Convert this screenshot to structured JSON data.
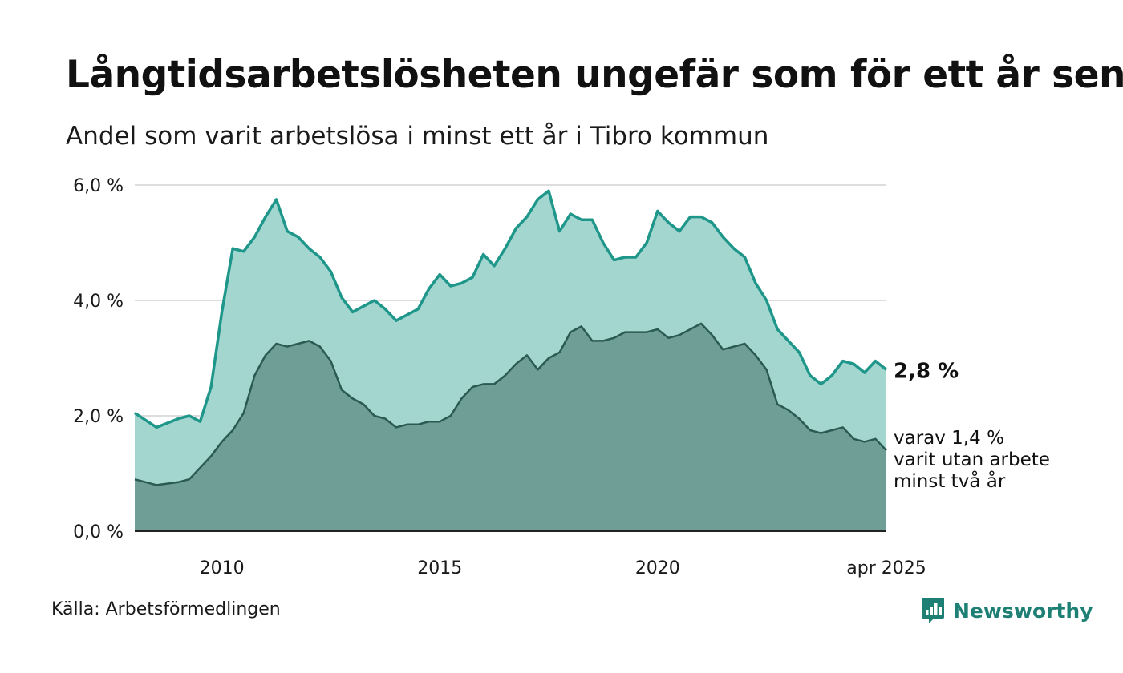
{
  "title": "Långtidsarbetslösheten ungefär som för ett år sen",
  "subtitle": "Andel som varit arbetslösa i minst ett år i Tibro kommun",
  "source": "Källa: Arbetsförmedlingen",
  "brand": "Newsworthy",
  "colors": {
    "total_fill": "#a4d6d0",
    "total_line": "#1f968a",
    "long_fill": "#6f9e96",
    "long_line": "#2a5a52",
    "grid": "#dddddd",
    "brand": "#1e7f74"
  },
  "chart_data": {
    "type": "area",
    "y_ticks": [
      "6,0 %",
      "4,0 %",
      "2,0 %",
      "0,0 %"
    ],
    "x_ticks": [
      "2010",
      "2015",
      "2020",
      "apr 2025"
    ],
    "ylim": [
      0,
      6
    ],
    "xlim": [
      2008.0,
      2025.25
    ],
    "grid": true,
    "x": [
      2008.0,
      2008.5,
      2009.0,
      2009.25,
      2009.5,
      2009.75,
      2010.0,
      2010.25,
      2010.5,
      2010.75,
      2011.0,
      2011.25,
      2011.5,
      2011.75,
      2012.0,
      2012.25,
      2012.5,
      2012.75,
      2013.0,
      2013.25,
      2013.5,
      2013.75,
      2014.0,
      2014.25,
      2014.5,
      2014.75,
      2015.0,
      2015.25,
      2015.5,
      2015.75,
      2016.0,
      2016.25,
      2016.5,
      2016.75,
      2017.0,
      2017.25,
      2017.5,
      2017.75,
      2018.0,
      2018.25,
      2018.5,
      2018.75,
      2019.0,
      2019.25,
      2019.5,
      2019.75,
      2020.0,
      2020.25,
      2020.5,
      2020.75,
      2021.0,
      2021.25,
      2021.5,
      2021.75,
      2022.0,
      2022.25,
      2022.5,
      2022.75,
      2023.0,
      2023.25,
      2023.5,
      2023.75,
      2024.0,
      2024.25,
      2024.5,
      2024.75,
      2025.0,
      2025.25
    ],
    "series": [
      {
        "values": [
          2.05,
          1.8,
          1.95,
          2.0,
          1.9,
          2.5,
          3.8,
          4.9,
          4.85,
          5.1,
          5.45,
          5.75,
          5.2,
          5.1,
          4.9,
          4.75,
          4.5,
          4.05,
          3.8,
          3.9,
          4.0,
          3.85,
          3.65,
          3.75,
          3.85,
          4.2,
          4.45,
          4.25,
          4.3,
          4.4,
          4.8,
          4.6,
          4.9,
          5.25,
          5.45,
          5.75,
          5.9,
          5.2,
          5.5,
          5.4,
          5.4,
          5.0,
          4.7,
          4.75,
          4.75,
          5.0,
          5.55,
          5.35,
          5.2,
          5.45,
          5.45,
          5.35,
          5.1,
          4.9,
          4.75,
          4.3,
          4.0,
          3.5,
          3.3,
          3.1,
          2.7,
          2.55,
          2.7,
          2.95,
          2.9,
          2.75,
          2.95,
          2.8
        ]
      },
      {
        "name": "varav 1,4 % varit utan arbete minst två år",
        "values": [
          0.9,
          0.8,
          0.85,
          0.9,
          1.1,
          1.3,
          1.55,
          1.75,
          2.05,
          2.7,
          3.05,
          3.25,
          3.2,
          3.25,
          3.3,
          3.2,
          2.95,
          2.45,
          2.3,
          2.2,
          2.0,
          1.95,
          1.8,
          1.85,
          1.85,
          1.9,
          1.9,
          2.0,
          2.3,
          2.5,
          2.55,
          2.55,
          2.7,
          2.9,
          3.05,
          2.8,
          3.0,
          3.1,
          3.45,
          3.55,
          3.3,
          3.3,
          3.35,
          3.45,
          3.45,
          3.45,
          3.5,
          3.35,
          3.4,
          3.5,
          3.6,
          3.4,
          3.15,
          3.2,
          3.25,
          3.05,
          2.8,
          2.2,
          2.1,
          1.95,
          1.75,
          1.7,
          1.75,
          1.8,
          1.6,
          1.55,
          1.6,
          1.4
        ]
      }
    ],
    "last_value_label": "2,8 %",
    "annotation_lines": [
      "varav 1,4 %",
      "varit utan arbete",
      "minst två år"
    ]
  }
}
